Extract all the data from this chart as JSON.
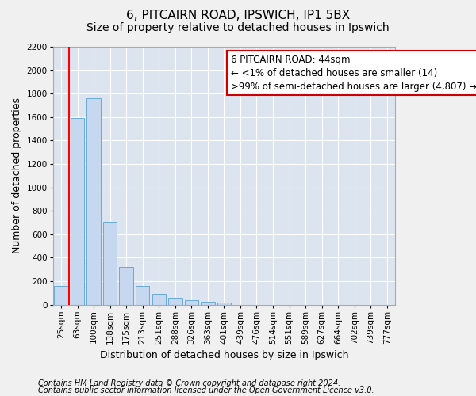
{
  "title1": "6, PITCAIRN ROAD, IPSWICH, IP1 5BX",
  "title2": "Size of property relative to detached houses in Ipswich",
  "xlabel": "Distribution of detached houses by size in Ipswich",
  "ylabel": "Number of detached properties",
  "categories": [
    "25sqm",
    "63sqm",
    "100sqm",
    "138sqm",
    "175sqm",
    "213sqm",
    "251sqm",
    "288sqm",
    "326sqm",
    "363sqm",
    "401sqm",
    "439sqm",
    "476sqm",
    "514sqm",
    "551sqm",
    "589sqm",
    "627sqm",
    "664sqm",
    "702sqm",
    "739sqm",
    "777sqm"
  ],
  "values": [
    160,
    1590,
    1760,
    710,
    320,
    160,
    90,
    55,
    35,
    25,
    20,
    0,
    0,
    0,
    0,
    0,
    0,
    0,
    0,
    0,
    0
  ],
  "bar_color": "#c5d8f0",
  "bar_edgecolor": "#6aaad4",
  "bg_color": "#dce4f0",
  "grid_color": "#ffffff",
  "annotation_line1": "6 PITCAIRN ROAD: 44sqm",
  "annotation_line2": "← <1% of detached houses are smaller (14)",
  "annotation_line3": ">99% of semi-detached houses are larger (4,807) →",
  "annotation_box_facecolor": "#ffffff",
  "annotation_box_edgecolor": "#cc0000",
  "red_line_x": 0.5,
  "ylim": [
    0,
    2200
  ],
  "yticks": [
    0,
    200,
    400,
    600,
    800,
    1000,
    1200,
    1400,
    1600,
    1800,
    2000,
    2200
  ],
  "footer1": "Contains HM Land Registry data © Crown copyright and database right 2024.",
  "footer2": "Contains public sector information licensed under the Open Government Licence v3.0.",
  "title_fontsize": 11,
  "subtitle_fontsize": 10,
  "axis_label_fontsize": 9,
  "tick_fontsize": 7.5,
  "annotation_fontsize": 8.5,
  "footer_fontsize": 7
}
